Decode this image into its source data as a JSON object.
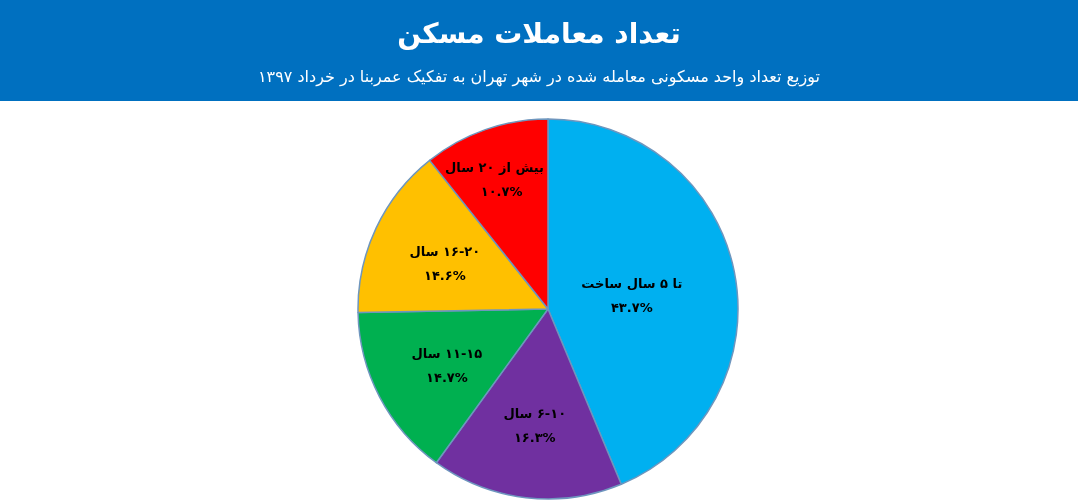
{
  "chart_data": {
    "type": "pie",
    "title": "تعداد معاملات مسکن",
    "subtitle": "توزیع تعداد واحد مسکونی معامله شده در شهر تهران به تفکیک عمربنا در خرداد ۱۳۹۷",
    "categories": [
      "تا ۵ سال ساخت",
      "۶-۱۰ سال",
      "۱۱-۱۵ سال",
      "۱۶-۲۰ سال",
      "بیش از ۲۰ سال"
    ],
    "values": [
      43.7,
      16.3,
      14.7,
      14.6,
      10.7
    ],
    "value_labels": [
      "۴۳.۷%",
      "۱۶.۳%",
      "۱۴.۷%",
      "۱۴.۶%",
      "۱۰.۷%"
    ],
    "colors": [
      "#00b0f0",
      "#7030a0",
      "#00b050",
      "#ffc000",
      "#ff0000"
    ]
  }
}
